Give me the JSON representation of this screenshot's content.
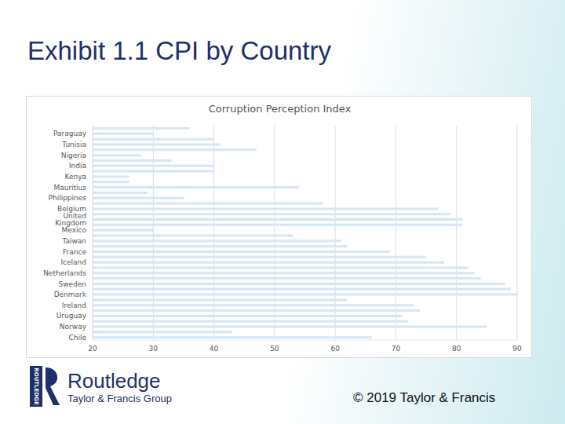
{
  "slide": {
    "title": "Exhibit 1.1 CPI by Country",
    "logo_mark": "ROUTLEDGE",
    "publisher": "Routledge",
    "publisher_group": "Taylor & Francis Group",
    "copyright": "© 2019 Taylor & Francis"
  },
  "chart_data": {
    "type": "bar",
    "title": "Corruption Perception Index",
    "orientation": "horizontal",
    "categories": [
      null,
      "Paraguay",
      null,
      "Tunisia",
      null,
      "Nigeria",
      null,
      "India",
      null,
      "Kenya",
      null,
      "Mauritius",
      null,
      "Philippines",
      null,
      "Belgium",
      null,
      "United Kingdom",
      null,
      "Mexico",
      null,
      "Taiwan",
      null,
      "France",
      null,
      "Iceland",
      null,
      "Netherlands",
      null,
      "Sweden",
      null,
      "Denmark",
      null,
      "Ireland",
      null,
      "Uruguay",
      null,
      "Norway",
      null,
      "Chile"
    ],
    "values": [
      36,
      30,
      40,
      41,
      47,
      28,
      33,
      40,
      40,
      26,
      26,
      54,
      29,
      35,
      58,
      77,
      79,
      81,
      81,
      30,
      53,
      61,
      62,
      69,
      75,
      78,
      82,
      83,
      84,
      88,
      89,
      90,
      62,
      73,
      74,
      71,
      72,
      85,
      43,
      66
    ],
    "color": "#d6e6f4",
    "xlim": [
      20,
      90
    ],
    "xticks": [
      20,
      30,
      40,
      50,
      60,
      70,
      80,
      90
    ],
    "grid": true
  }
}
